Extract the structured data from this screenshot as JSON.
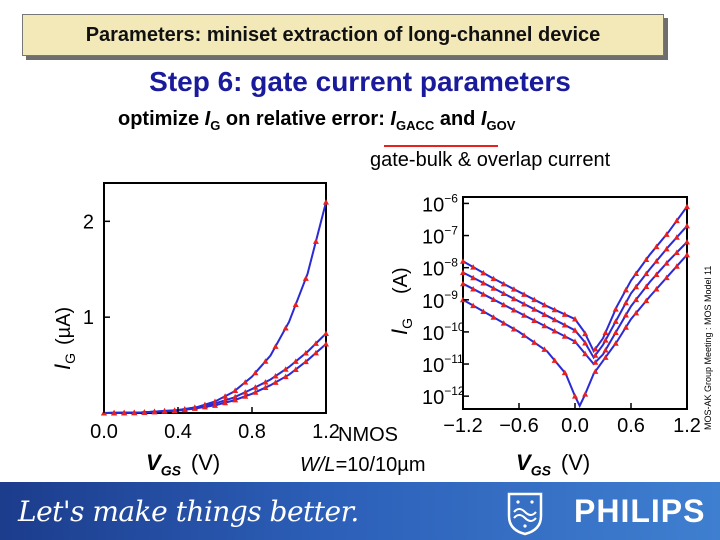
{
  "header": {
    "title": "Parameters: miniset extraction of long-channel device"
  },
  "slide": {
    "title": "Step 6: gate current parameters",
    "subtitle_prefix": "optimize ",
    "subtitle_ig_main": "I",
    "subtitle_ig_sub": "G",
    "subtitle_mid": " on relative error: ",
    "subtitle_p1_main": "I",
    "subtitle_p1_sub": "GACC",
    "subtitle_and": " and ",
    "subtitle_p2_main": "I",
    "subtitle_p2_sub": "GOV",
    "gate_bulk_label": "gate-bulk & overlap current",
    "nmos_label": "NMOS",
    "wl_prefix": "W/L",
    "wl_value": "=10/10µm",
    "side_note": "MOS-AK Group Meeting : MOS Model 11"
  },
  "footer": {
    "slogan": "Let's make things better.",
    "brand": "PHILIPS"
  },
  "colors": {
    "sim": "#2a2ad6",
    "meas": "#e8201e",
    "accent": "#1a1a9c"
  },
  "icons": {
    "shield": "philips-shield-icon"
  },
  "chart_data": [
    {
      "type": "line",
      "scale": "linear",
      "ylabel_main": "I",
      "ylabel_sub": "G",
      "ylabel_unit": "(µA)",
      "xlabel_main": "V",
      "xlabel_sub": "GS",
      "xlabel_unit": "(V)",
      "xticks": [
        "0.0",
        "0.4",
        "0.8",
        "1.2"
      ],
      "yticks": [
        "1",
        "2"
      ],
      "xlim": [
        0.0,
        1.2
      ],
      "ylim": [
        0.0,
        2.4
      ],
      "grid": false,
      "series": [
        {
          "x": [
            0.0,
            0.2,
            0.4,
            0.5,
            0.6,
            0.7,
            0.8,
            0.9,
            1.0,
            1.1,
            1.2
          ],
          "y": [
            0.0,
            0.005,
            0.03,
            0.06,
            0.12,
            0.22,
            0.38,
            0.6,
            0.95,
            1.45,
            2.2
          ]
        },
        {
          "x": [
            0.0,
            0.2,
            0.4,
            0.5,
            0.6,
            0.7,
            0.8,
            0.9,
            1.0,
            1.1,
            1.2
          ],
          "y": [
            0.0,
            0.005,
            0.03,
            0.06,
            0.1,
            0.16,
            0.25,
            0.35,
            0.48,
            0.64,
            0.83
          ]
        },
        {
          "x": [
            0.0,
            0.2,
            0.4,
            0.5,
            0.6,
            0.7,
            0.8,
            0.9,
            1.0,
            1.1,
            1.2
          ],
          "y": [
            0.0,
            0.005,
            0.025,
            0.05,
            0.08,
            0.13,
            0.2,
            0.29,
            0.4,
            0.55,
            0.72
          ]
        }
      ]
    },
    {
      "type": "line",
      "scale": "log",
      "ylabel_main": "I",
      "ylabel_sub": "G",
      "ylabel_unit": "(A)",
      "xlabel_main": "V",
      "xlabel_sub": "GS",
      "xlabel_unit": "(V)",
      "xticks": [
        "−1.2",
        "−0.6",
        "0.0",
        "0.6",
        "1.2"
      ],
      "ytick_exponents": [
        -6,
        -7,
        -8,
        -9,
        -10,
        -11,
        -12
      ],
      "xlim": [
        -1.2,
        1.2
      ],
      "ylim_exp": [
        -12.4,
        -5.8
      ],
      "grid": false,
      "series": [
        {
          "x": [
            -1.2,
            -0.9,
            -0.6,
            -0.3,
            0.0,
            0.1,
            0.2,
            0.3,
            0.45,
            0.6,
            0.8,
            1.0,
            1.2
          ],
          "y_exp": [
            -7.8,
            -8.3,
            -8.75,
            -9.2,
            -9.6,
            -10.0,
            -10.6,
            -10.2,
            -9.2,
            -8.4,
            -7.6,
            -6.9,
            -6.1
          ]
        },
        {
          "x": [
            -1.2,
            -0.9,
            -0.6,
            -0.3,
            0.0,
            0.1,
            0.2,
            0.3,
            0.45,
            0.6,
            0.8,
            1.0,
            1.2
          ],
          "y_exp": [
            -8.15,
            -8.6,
            -9.05,
            -9.5,
            -9.95,
            -10.3,
            -10.8,
            -10.4,
            -9.6,
            -8.8,
            -8.05,
            -7.35,
            -6.7
          ]
        },
        {
          "x": [
            -1.2,
            -0.9,
            -0.6,
            -0.3,
            0.0,
            0.1,
            0.2,
            0.3,
            0.45,
            0.6,
            0.8,
            1.0,
            1.2
          ],
          "y_exp": [
            -8.5,
            -8.95,
            -9.4,
            -9.85,
            -10.3,
            -10.65,
            -11.0,
            -10.7,
            -9.95,
            -9.2,
            -8.45,
            -7.8,
            -7.2
          ]
        },
        {
          "x": [
            -1.2,
            -0.9,
            -0.6,
            -0.3,
            -0.1,
            0.0,
            0.05,
            0.1,
            0.2,
            0.3,
            0.45,
            0.6,
            0.8,
            1.0,
            1.2
          ],
          "y_exp": [
            -9.0,
            -9.5,
            -10.0,
            -10.6,
            -11.3,
            -12.0,
            -12.3,
            -12.0,
            -11.3,
            -10.9,
            -10.3,
            -9.6,
            -8.9,
            -8.25,
            -7.6
          ]
        }
      ]
    }
  ]
}
